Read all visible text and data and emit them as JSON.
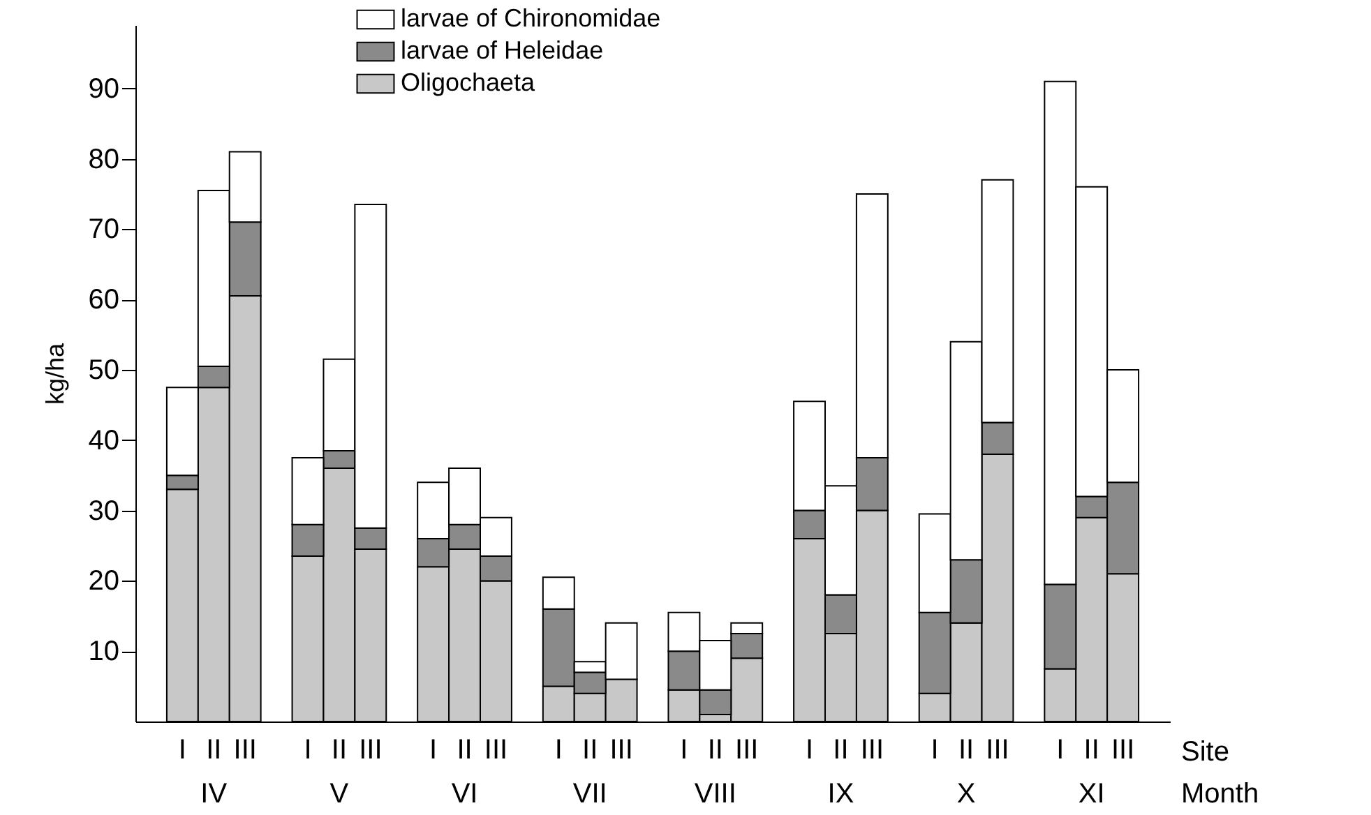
{
  "chart_data": {
    "type": "bar",
    "stacked": true,
    "ylabel": "kg/ha",
    "xlabel": "Site",
    "categories": [
      "I",
      "II",
      "III",
      "I",
      "II",
      "III",
      "I",
      "II",
      "III",
      "I",
      "II",
      "III",
      "I",
      "II",
      "III",
      "I",
      "II",
      "III",
      "I",
      "II",
      "III",
      "I",
      "II",
      "III"
    ],
    "series": [
      {
        "name": "Oligochaeta",
        "color": "#c8c8c8",
        "values": [
          33,
          47.5,
          60.5,
          23.5,
          36,
          24.5,
          22,
          24.5,
          20,
          5,
          4,
          6,
          4.5,
          1,
          9,
          26,
          12.5,
          30,
          4,
          14,
          38,
          7.5,
          29,
          21
        ]
      },
      {
        "name": "larvae of Heleidae",
        "color": "#8a8a8a",
        "values": [
          2,
          3,
          10.5,
          4.5,
          2.5,
          3,
          4,
          3.5,
          3.5,
          11,
          3,
          0,
          5.5,
          3.5,
          3.5,
          4,
          5.5,
          7.5,
          11.5,
          9,
          4.5,
          12,
          3,
          13
        ]
      },
      {
        "name": "larvae of Chironomidae",
        "color": "#ffffff",
        "values": [
          12.5,
          25,
          10,
          9.5,
          13,
          46,
          8,
          8,
          5.5,
          4.5,
          1.5,
          8,
          5.5,
          7,
          1.5,
          15.5,
          15.5,
          37.5,
          14,
          31,
          34.5,
          71.5,
          44,
          16
        ]
      }
    ],
    "annotations": [
      "IV",
      "V",
      "VI",
      "VII",
      "VIII",
      "IX",
      "X",
      "XI",
      "Month"
    ],
    "ylim": [
      0,
      99
    ],
    "yticks": [
      10,
      20,
      30,
      40,
      50,
      60,
      70,
      80,
      90
    ],
    "grid": false,
    "legend": "top"
  }
}
